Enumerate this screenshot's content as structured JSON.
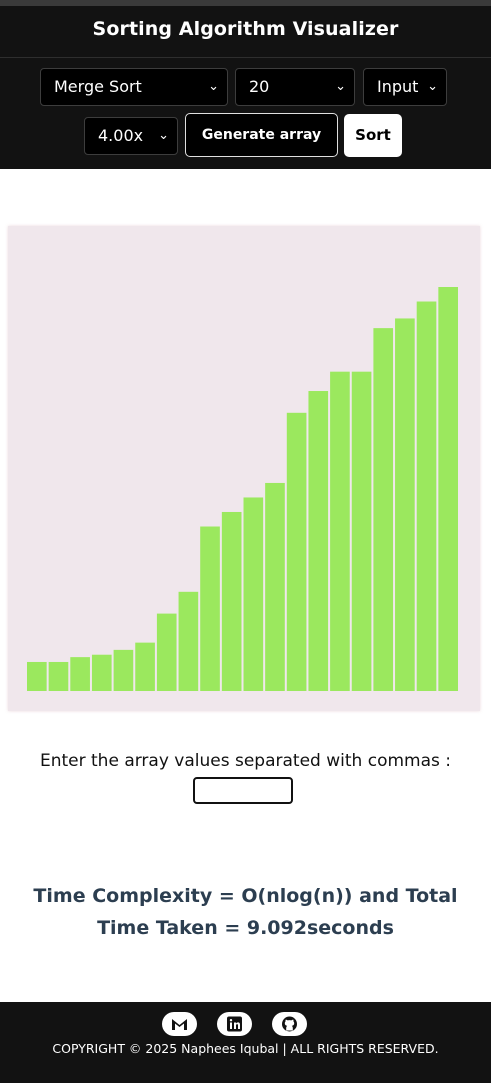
{
  "header": {
    "title": "Sorting Algorithm Visualizer",
    "algorithm": "Merge Sort",
    "array_size": "20",
    "mode": "Input",
    "speed": "4.00x",
    "generate_label": "Generate array",
    "sort_label": "Sort"
  },
  "colors": {
    "header_bg": "#121212",
    "bar": "#9be85e",
    "canvas_bg": "#f0e7ec",
    "complexity_text": "#2c3e50"
  },
  "chart_data": {
    "type": "bar",
    "values": [
      12,
      12,
      14,
      15,
      17,
      20,
      32,
      41,
      68,
      74,
      80,
      86,
      115,
      124,
      132,
      132,
      150,
      154,
      161,
      167
    ]
  },
  "input": {
    "prompt": "Enter the array values separated with commas :",
    "value": ""
  },
  "complexity": {
    "text": "Time Complexity = O(nlog(n)) and Total Time Taken = 9.092seconds"
  },
  "footer": {
    "icons": [
      "gmail-icon",
      "linkedin-icon",
      "github-icon"
    ],
    "copyright": "COPYRIGHT © 2025 Naphees Iqubal | ALL RIGHTS RESERVED."
  }
}
